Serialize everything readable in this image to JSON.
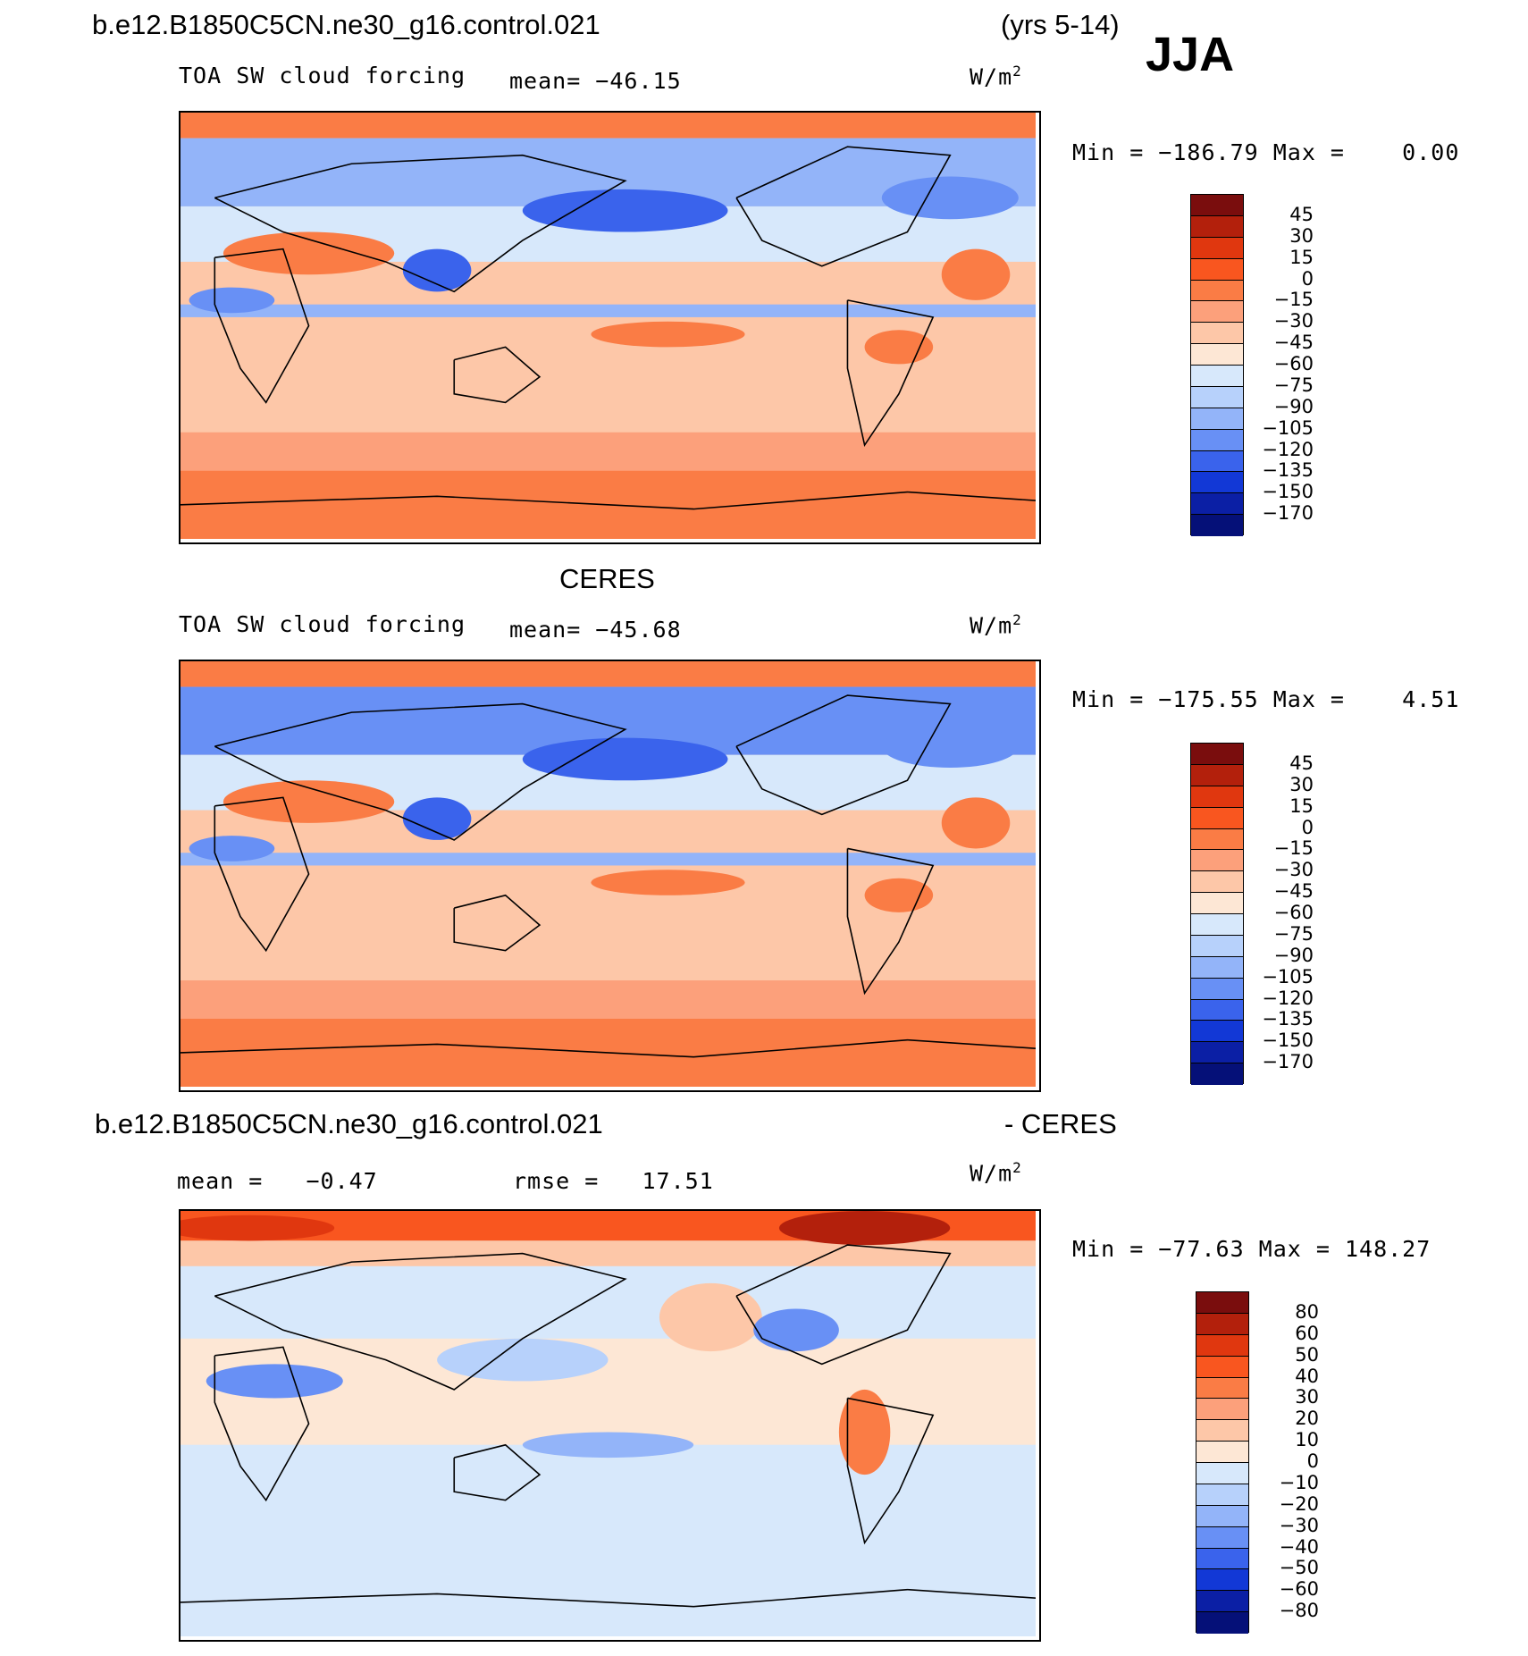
{
  "header": {
    "case_name": "b.e12.B1850C5CN.ne30_g16.control.021",
    "years": "(yrs 5-14)",
    "season": "JJA"
  },
  "panels": [
    {
      "title": "",
      "variable": "TOA SW cloud forcing",
      "mean_text": "mean= −46.15",
      "units_base": "W/m",
      "units_exp": "2",
      "minmax_text": "Min = −186.79 Max =    0.00",
      "scale": [
        "45",
        "30",
        "15",
        "0",
        "−15",
        "−30",
        "−45",
        "−60",
        "−75",
        "−90",
        "−105",
        "−120",
        "−135",
        "−150",
        "−170"
      ]
    },
    {
      "title": "CERES",
      "variable": "TOA SW cloud forcing",
      "mean_text": "mean= −45.68",
      "units_base": "W/m",
      "units_exp": "2",
      "minmax_text": "Min = −175.55 Max =    4.51",
      "scale": [
        "45",
        "30",
        "15",
        "0",
        "−15",
        "−30",
        "−45",
        "−60",
        "−75",
        "−90",
        "−105",
        "−120",
        "−135",
        "−150",
        "−170"
      ]
    },
    {
      "title_left": "b.e12.B1850C5CN.ne30_g16.control.021",
      "title_right": "- CERES",
      "mean_text": "mean =   −0.47",
      "rmse_text": "rmse =   17.51",
      "units_base": "W/m",
      "units_exp": "2",
      "minmax_text": "Min = −77.63 Max = 148.27",
      "scale": [
        "80",
        "60",
        "50",
        "40",
        "30",
        "20",
        "10",
        "0",
        "−10",
        "−20",
        "−30",
        "−40",
        "−50",
        "−60",
        "−80"
      ]
    }
  ],
  "colors": {
    "scale": [
      "#7a0d0d",
      "#b3200c",
      "#e0370f",
      "#f9561f",
      "#fa7c45",
      "#fca07b",
      "#fdc7a8",
      "#fde7d5",
      "#d7e8fb",
      "#b7d1fb",
      "#93b4f9",
      "#6890f5",
      "#3a63ec",
      "#1238d6",
      "#0b1fa5",
      "#051078"
    ],
    "coast": "#000000"
  }
}
